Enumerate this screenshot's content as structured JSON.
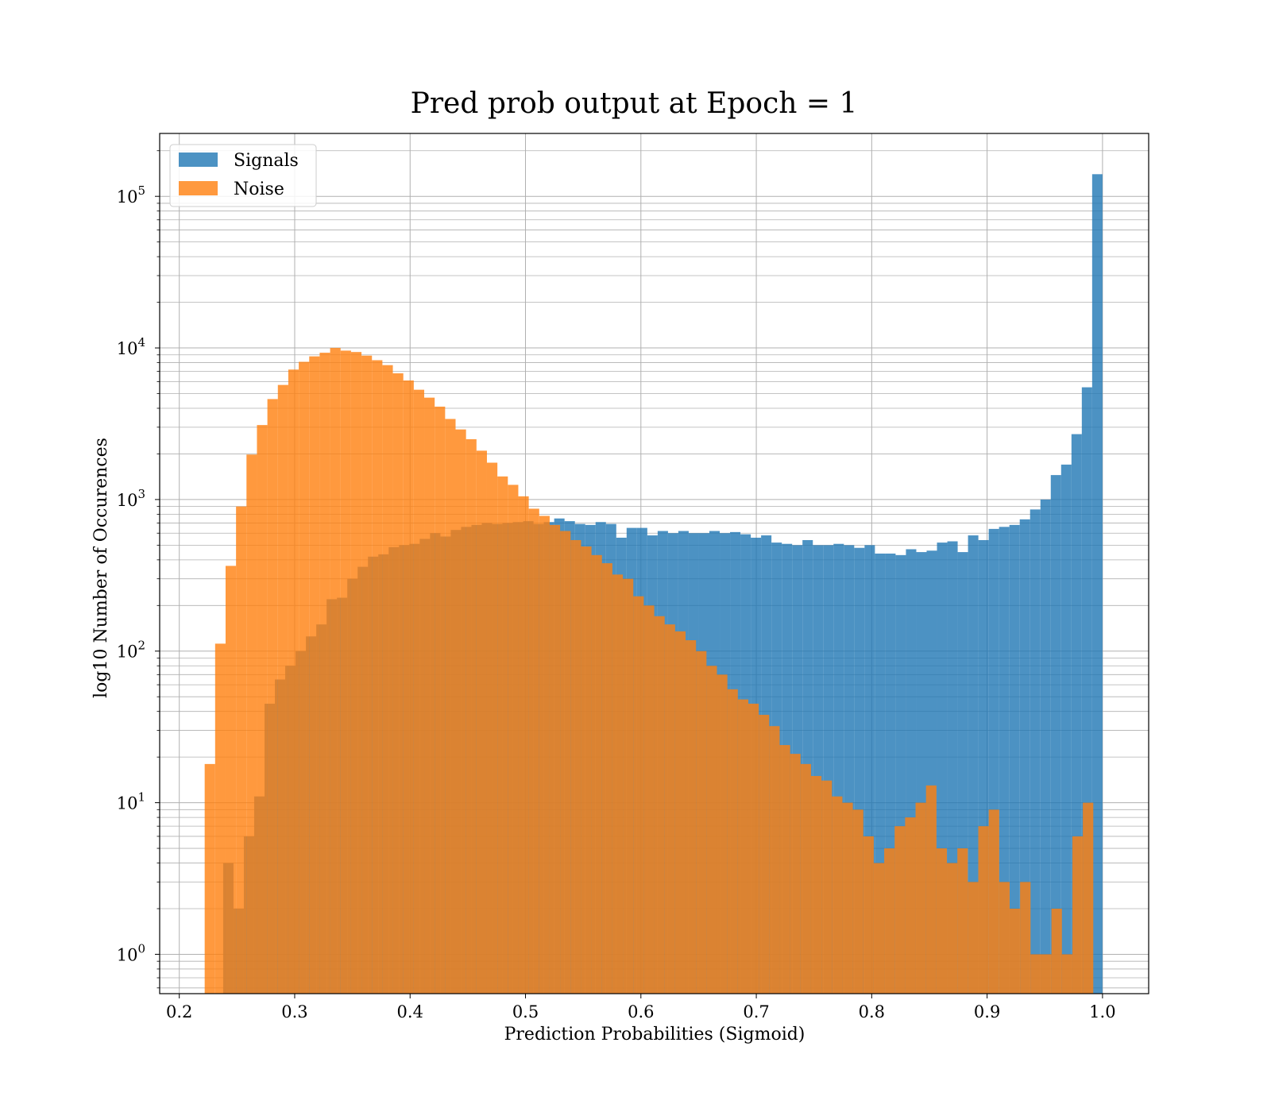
{
  "chart_data": {
    "type": "bar",
    "title": "Pred prob output at Epoch = 1",
    "xlabel": "Prediction Probabilities (Sigmoid)",
    "ylabel": "log10 Number of Occurences",
    "xlim": [
      0.183,
      1.04
    ],
    "ylim": [
      0.55,
      260000
    ],
    "yscale": "log",
    "grid": true,
    "legend_position": "top-left",
    "x_ticks": [
      "0.2",
      "0.3",
      "0.4",
      "0.5",
      "0.6",
      "0.7",
      "0.8",
      "0.9",
      "1.0"
    ],
    "y_ticks": [
      {
        "base": "10",
        "exp": "0"
      },
      {
        "base": "10",
        "exp": "1"
      },
      {
        "base": "10",
        "exp": "2"
      },
      {
        "base": "10",
        "exp": "3"
      },
      {
        "base": "10",
        "exp": "4"
      },
      {
        "base": "10",
        "exp": "5"
      }
    ],
    "series": [
      {
        "name": "Signals",
        "color": "#1f77b4",
        "bin_edges": [
          0.238,
          1.0
        ],
        "counts": [
          4,
          2,
          6,
          11,
          45,
          65,
          80,
          100,
          125,
          150,
          220,
          225,
          300,
          360,
          420,
          435,
          485,
          500,
          510,
          550,
          600,
          570,
          630,
          660,
          680,
          700,
          690,
          700,
          710,
          720,
          690,
          710,
          750,
          720,
          690,
          680,
          710,
          690,
          560,
          650,
          650,
          580,
          620,
          600,
          620,
          600,
          600,
          620,
          600,
          610,
          590,
          560,
          580,
          520,
          510,
          500,
          540,
          500,
          500,
          510,
          500,
          480,
          500,
          440,
          440,
          430,
          470,
          450,
          460,
          520,
          530,
          450,
          580,
          540,
          640,
          660,
          680,
          740,
          860,
          1000,
          1450,
          1700,
          2700,
          5500,
          140000
        ]
      },
      {
        "name": "Noise",
        "color": "#ff7f0e",
        "bin_edges": [
          0.222,
          0.992
        ],
        "counts": [
          18,
          112,
          365,
          900,
          1980,
          3100,
          4600,
          5700,
          7200,
          8100,
          8800,
          9300,
          10000,
          9600,
          9400,
          8900,
          8300,
          7700,
          6800,
          6100,
          5300,
          4700,
          4100,
          3400,
          2900,
          2500,
          2100,
          1750,
          1420,
          1250,
          1050,
          870,
          780,
          680,
          620,
          540,
          490,
          430,
          380,
          320,
          300,
          230,
          200,
          170,
          150,
          135,
          118,
          100,
          80,
          70,
          56,
          48,
          45,
          38,
          32,
          24,
          21,
          18,
          15,
          14,
          11,
          10,
          9,
          6,
          4,
          5,
          7,
          8,
          10,
          13,
          5,
          4,
          5,
          3,
          7,
          9,
          3,
          2,
          3,
          1,
          1,
          2,
          1,
          6,
          10
        ]
      }
    ]
  }
}
